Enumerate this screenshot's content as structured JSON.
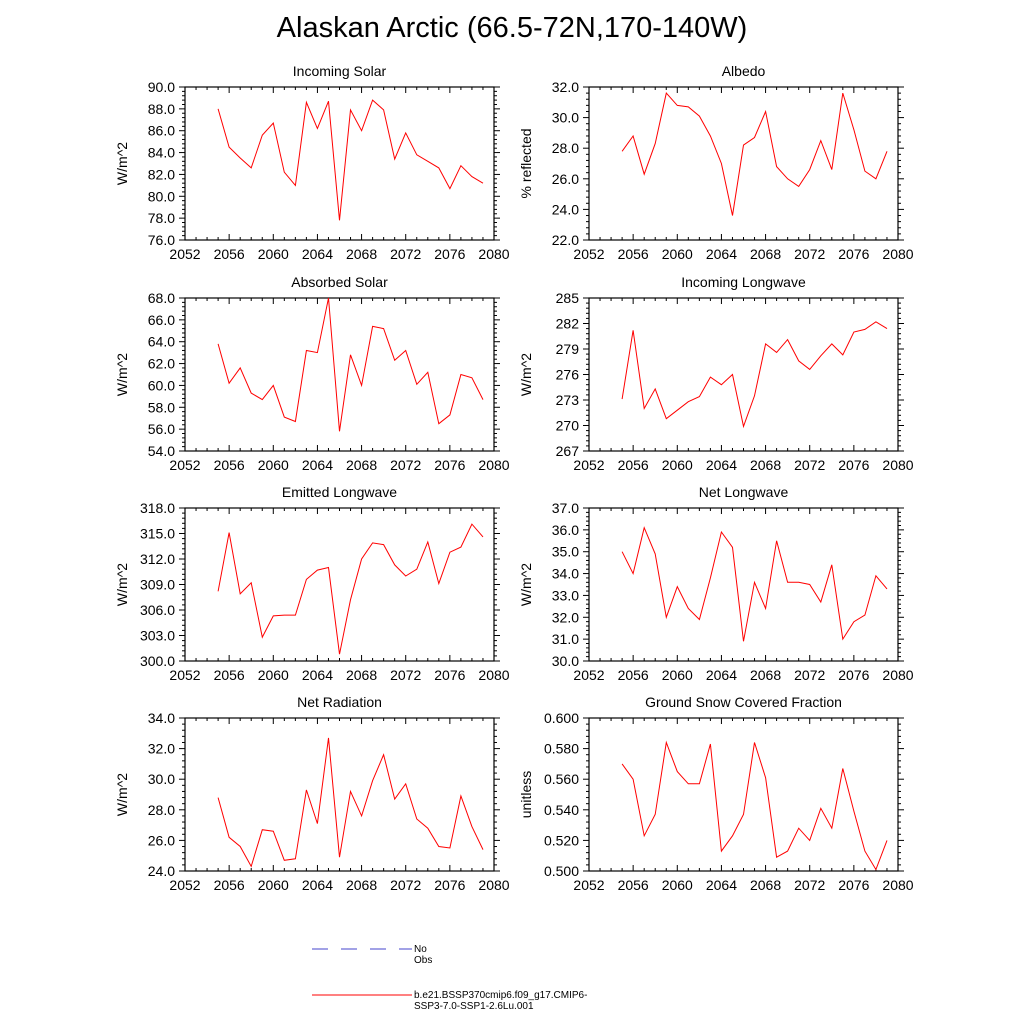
{
  "title": "Alaskan Arctic (66.5-72N,170-140W)",
  "legend": {
    "items": [
      {
        "label": "No Obs",
        "color": "#4444cc",
        "style": "dashed"
      },
      {
        "label": "b.e21.BSSP370cmip6.f09_g17.CMIP6-SSP3-7.0-SSP1-2.6Lu.001",
        "color": "#ff0000",
        "style": "solid"
      }
    ]
  },
  "chart_data": [
    {
      "type": "line",
      "title": "Incoming Solar",
      "ylabel": "W/m^2",
      "xlabel": "",
      "xlim": [
        2052,
        2080
      ],
      "ylim": [
        76.0,
        90.0
      ],
      "xticks": [
        "2052",
        "2056",
        "2060",
        "2064",
        "2068",
        "2072",
        "2076",
        "2080"
      ],
      "yticks": [
        "76.0",
        "78.0",
        "80.0",
        "82.0",
        "84.0",
        "86.0",
        "88.0",
        "90.0"
      ],
      "x": [
        2055,
        2056,
        2057,
        2058,
        2059,
        2060,
        2061,
        2062,
        2063,
        2064,
        2065,
        2066,
        2067,
        2068,
        2069,
        2070,
        2071,
        2072,
        2073,
        2074,
        2075,
        2076,
        2077,
        2078,
        2079
      ],
      "series": [
        {
          "values": [
            88.0,
            84.5,
            83.5,
            82.6,
            85.6,
            86.7,
            82.2,
            81.0,
            88.6,
            86.2,
            88.7,
            77.8,
            87.9,
            86.0,
            88.8,
            87.9,
            83.4,
            85.8,
            83.8,
            83.2,
            82.6,
            80.7,
            82.8,
            81.8,
            81.2
          ],
          "color": "#ff0000"
        }
      ]
    },
    {
      "type": "line",
      "title": "Albedo",
      "ylabel": "% reflected",
      "xlabel": "",
      "xlim": [
        2052,
        2080
      ],
      "ylim": [
        22.0,
        32.0
      ],
      "xticks": [
        "2052",
        "2056",
        "2060",
        "2064",
        "2068",
        "2072",
        "2076",
        "2080"
      ],
      "yticks": [
        "22.0",
        "24.0",
        "26.0",
        "28.0",
        "30.0",
        "32.0"
      ],
      "x": [
        2055,
        2056,
        2057,
        2058,
        2059,
        2060,
        2061,
        2062,
        2063,
        2064,
        2065,
        2066,
        2067,
        2068,
        2069,
        2070,
        2071,
        2072,
        2073,
        2074,
        2075,
        2076,
        2077,
        2078,
        2079
      ],
      "series": [
        {
          "values": [
            27.8,
            28.8,
            26.3,
            28.3,
            31.6,
            30.8,
            30.7,
            30.1,
            28.8,
            27.0,
            23.6,
            28.2,
            28.7,
            30.4,
            26.8,
            26.0,
            25.5,
            26.6,
            28.5,
            26.6,
            31.6,
            29.2,
            26.5,
            26.0,
            27.8
          ],
          "color": "#ff0000"
        }
      ]
    },
    {
      "type": "line",
      "title": "Absorbed Solar",
      "ylabel": "W/m^2",
      "xlabel": "",
      "xlim": [
        2052,
        2080
      ],
      "ylim": [
        54.0,
        68.0
      ],
      "xticks": [
        "2052",
        "2056",
        "2060",
        "2064",
        "2068",
        "2072",
        "2076",
        "2080"
      ],
      "yticks": [
        "54.0",
        "56.0",
        "58.0",
        "60.0",
        "62.0",
        "64.0",
        "66.0",
        "68.0"
      ],
      "x": [
        2055,
        2056,
        2057,
        2058,
        2059,
        2060,
        2061,
        2062,
        2063,
        2064,
        2065,
        2066,
        2067,
        2068,
        2069,
        2070,
        2071,
        2072,
        2073,
        2074,
        2075,
        2076,
        2077,
        2078,
        2079
      ],
      "series": [
        {
          "values": [
            63.8,
            60.2,
            61.6,
            59.3,
            58.7,
            60.0,
            57.1,
            56.7,
            63.2,
            63.0,
            68.0,
            55.8,
            62.8,
            60.0,
            65.4,
            65.2,
            62.3,
            63.2,
            60.1,
            61.2,
            56.5,
            57.3,
            61.0,
            60.7,
            58.7
          ],
          "color": "#ff0000"
        }
      ]
    },
    {
      "type": "line",
      "title": "Incoming Longwave",
      "ylabel": "W/m^2",
      "xlabel": "",
      "xlim": [
        2052,
        2080
      ],
      "ylim": [
        267,
        285
      ],
      "xticks": [
        "2052",
        "2056",
        "2060",
        "2064",
        "2068",
        "2072",
        "2076",
        "2080"
      ],
      "yticks": [
        "267",
        "270",
        "273",
        "276",
        "279",
        "282",
        "285"
      ],
      "x": [
        2055,
        2056,
        2057,
        2058,
        2059,
        2060,
        2061,
        2062,
        2063,
        2064,
        2065,
        2066,
        2067,
        2068,
        2069,
        2070,
        2071,
        2072,
        2073,
        2074,
        2075,
        2076,
        2077,
        2078,
        2079
      ],
      "series": [
        {
          "values": [
            273.1,
            281.2,
            272.0,
            274.3,
            270.8,
            271.8,
            272.8,
            273.4,
            275.7,
            274.8,
            276.0,
            269.9,
            273.5,
            279.6,
            278.6,
            280.1,
            277.6,
            276.6,
            278.2,
            279.6,
            278.3,
            281.0,
            281.3,
            282.2,
            281.4
          ],
          "color": "#ff0000"
        }
      ]
    },
    {
      "type": "line",
      "title": "Emitted Longwave",
      "ylabel": "W/m^2",
      "xlabel": "",
      "xlim": [
        2052,
        2080
      ],
      "ylim": [
        300.0,
        318.0
      ],
      "xticks": [
        "2052",
        "2056",
        "2060",
        "2064",
        "2068",
        "2072",
        "2076",
        "2080"
      ],
      "yticks": [
        "300.0",
        "303.0",
        "306.0",
        "309.0",
        "312.0",
        "315.0",
        "318.0"
      ],
      "x": [
        2055,
        2056,
        2057,
        2058,
        2059,
        2060,
        2061,
        2062,
        2063,
        2064,
        2065,
        2066,
        2067,
        2068,
        2069,
        2070,
        2071,
        2072,
        2073,
        2074,
        2075,
        2076,
        2077,
        2078,
        2079
      ],
      "series": [
        {
          "values": [
            308.2,
            315.1,
            307.9,
            309.2,
            302.8,
            305.3,
            305.4,
            305.4,
            309.6,
            310.7,
            311.0,
            300.8,
            307.2,
            312.0,
            313.9,
            313.7,
            311.3,
            310.0,
            310.8,
            314.0,
            309.1,
            312.8,
            313.4,
            316.1,
            314.6
          ],
          "color": "#ff0000"
        }
      ]
    },
    {
      "type": "line",
      "title": "Net Longwave",
      "ylabel": "W/m^2",
      "xlabel": "",
      "xlim": [
        2052,
        2080
      ],
      "ylim": [
        30.0,
        37.0
      ],
      "xticks": [
        "2052",
        "2056",
        "2060",
        "2064",
        "2068",
        "2072",
        "2076",
        "2080"
      ],
      "yticks": [
        "30.0",
        "31.0",
        "32.0",
        "33.0",
        "34.0",
        "35.0",
        "36.0",
        "37.0"
      ],
      "x": [
        2055,
        2056,
        2057,
        2058,
        2059,
        2060,
        2061,
        2062,
        2063,
        2064,
        2065,
        2066,
        2067,
        2068,
        2069,
        2070,
        2071,
        2072,
        2073,
        2074,
        2075,
        2076,
        2077,
        2078,
        2079
      ],
      "series": [
        {
          "values": [
            35.0,
            34.0,
            36.1,
            34.9,
            32.0,
            33.4,
            32.4,
            31.9,
            33.8,
            35.9,
            35.2,
            30.9,
            33.6,
            32.4,
            35.5,
            33.6,
            33.6,
            33.5,
            32.7,
            34.4,
            31.0,
            31.8,
            32.1,
            33.9,
            33.3
          ],
          "color": "#ff0000"
        }
      ]
    },
    {
      "type": "line",
      "title": "Net Radiation",
      "ylabel": "W/m^2",
      "xlabel": "",
      "xlim": [
        2052,
        2080
      ],
      "ylim": [
        24.0,
        34.0
      ],
      "xticks": [
        "2052",
        "2056",
        "2060",
        "2064",
        "2068",
        "2072",
        "2076",
        "2080"
      ],
      "yticks": [
        "24.0",
        "26.0",
        "28.0",
        "30.0",
        "32.0",
        "34.0"
      ],
      "x": [
        2055,
        2056,
        2057,
        2058,
        2059,
        2060,
        2061,
        2062,
        2063,
        2064,
        2065,
        2066,
        2067,
        2068,
        2069,
        2070,
        2071,
        2072,
        2073,
        2074,
        2075,
        2076,
        2077,
        2078,
        2079
      ],
      "series": [
        {
          "values": [
            28.8,
            26.2,
            25.6,
            24.3,
            26.7,
            26.6,
            24.7,
            24.8,
            29.3,
            27.1,
            32.7,
            24.9,
            29.2,
            27.6,
            29.9,
            31.6,
            28.7,
            29.7,
            27.4,
            26.8,
            25.6,
            25.5,
            28.9,
            26.9,
            25.4
          ],
          "color": "#ff0000"
        }
      ]
    },
    {
      "type": "line",
      "title": "Ground Snow Covered Fraction",
      "ylabel": "unitless",
      "xlabel": "",
      "xlim": [
        2052,
        2080
      ],
      "ylim": [
        0.5,
        0.6
      ],
      "xticks": [
        "2052",
        "2056",
        "2060",
        "2064",
        "2068",
        "2072",
        "2076",
        "2080"
      ],
      "yticks": [
        "0.500",
        "0.520",
        "0.540",
        "0.560",
        "0.580",
        "0.600"
      ],
      "x": [
        2055,
        2056,
        2057,
        2058,
        2059,
        2060,
        2061,
        2062,
        2063,
        2064,
        2065,
        2066,
        2067,
        2068,
        2069,
        2070,
        2071,
        2072,
        2073,
        2074,
        2075,
        2076,
        2077,
        2078,
        2079
      ],
      "series": [
        {
          "values": [
            0.57,
            0.56,
            0.523,
            0.537,
            0.584,
            0.565,
            0.557,
            0.557,
            0.583,
            0.513,
            0.523,
            0.537,
            0.584,
            0.561,
            0.509,
            0.513,
            0.528,
            0.52,
            0.541,
            0.528,
            0.567,
            0.539,
            0.513,
            0.501,
            0.52
          ],
          "color": "#ff0000"
        }
      ]
    }
  ]
}
